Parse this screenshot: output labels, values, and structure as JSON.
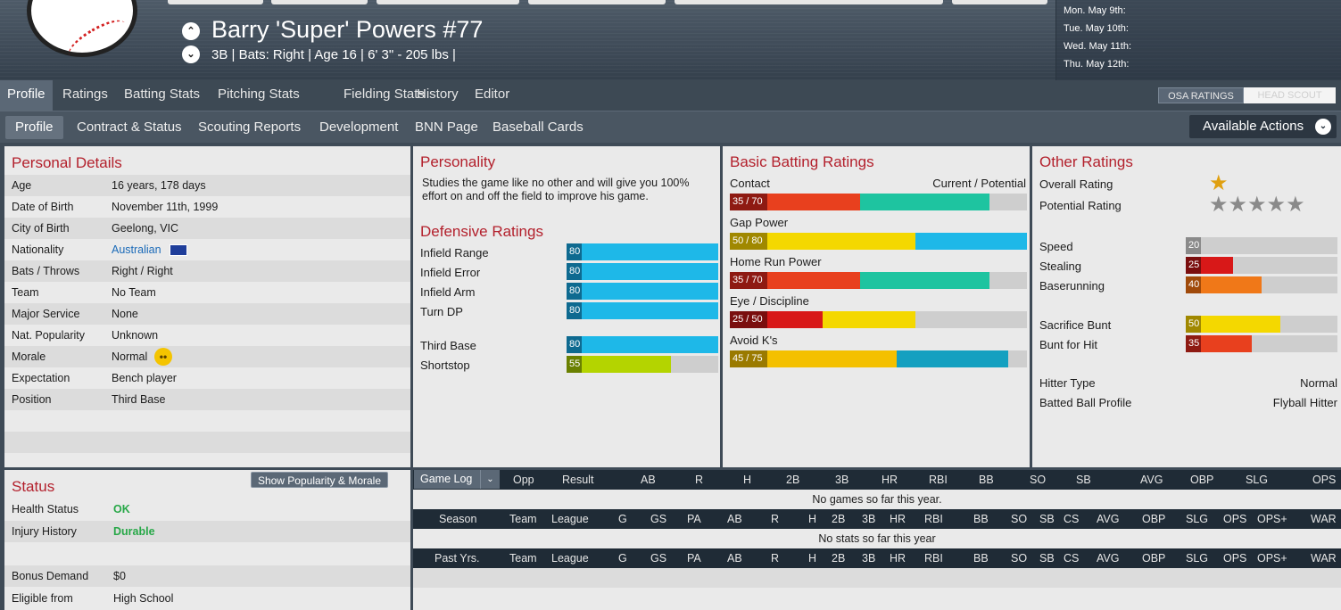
{
  "header": {
    "player_name": "Barry 'Super' Powers  #77",
    "player_info": "3B | Bats: Right  |  Age 16  |  6' 3\" - 205 lbs  |",
    "schedule": [
      "Mon. May 9th:",
      "Tue. May 10th:",
      "Wed. May 11th:",
      "Thu. May 12th:"
    ]
  },
  "tabs": [
    "Profile",
    "Ratings",
    "Batting Stats",
    "Pitching Stats",
    "Fielding Stats",
    "History",
    "Editor"
  ],
  "rating_source": {
    "osa": "OSA RATINGS",
    "head_scout": "HEAD SCOUT"
  },
  "subtabs": [
    "Profile",
    "Contract & Status",
    "Scouting Reports",
    "Development",
    "BNN Page",
    "Baseball Cards"
  ],
  "actions_label": "Available Actions",
  "personal_details": {
    "title": "Personal Details",
    "rows": [
      {
        "label": "Age",
        "value": "16 years, 178 days"
      },
      {
        "label": "Date of Birth",
        "value": "November 11th, 1999"
      },
      {
        "label": "City of Birth",
        "value": "Geelong, VIC"
      },
      {
        "label": "Nationality",
        "value": "Australian"
      },
      {
        "label": "Bats / Throws",
        "value": "Right / Right"
      },
      {
        "label": "Team",
        "value": "No Team"
      },
      {
        "label": "Major Service",
        "value": "None"
      },
      {
        "label": "Nat. Popularity",
        "value": "Unknown"
      },
      {
        "label": "Morale",
        "value": "Normal"
      },
      {
        "label": "Expectation",
        "value": "Bench player"
      },
      {
        "label": "Position",
        "value": "Third Base"
      }
    ]
  },
  "status": {
    "title": "Status",
    "show_button": "Show Popularity & Morale",
    "rows": [
      {
        "label": "Health Status",
        "value": "OK"
      },
      {
        "label": "Injury History",
        "value": "Durable"
      },
      {
        "label": "Bonus Demand",
        "value": "$0"
      },
      {
        "label": "Eligible from",
        "value": "High School"
      }
    ]
  },
  "personality": {
    "title": "Personality",
    "text": "Studies the game like no other and will give you 100% effort on and off the field to improve his game."
  },
  "defensive": {
    "title": "Defensive Ratings",
    "rows": [
      {
        "label": "Infield Range",
        "value": 80,
        "color": "#1eb8e8"
      },
      {
        "label": "Infield Error",
        "value": 80,
        "color": "#1eb8e8"
      },
      {
        "label": "Infield Arm",
        "value": 80,
        "color": "#1eb8e8"
      },
      {
        "label": "Turn DP",
        "value": 80,
        "color": "#1eb8e8"
      },
      {
        "label": "Third Base",
        "value": 80,
        "color": "#1eb8e8"
      },
      {
        "label": "Shortstop",
        "value": 55,
        "color": "#b4d400"
      }
    ]
  },
  "batting": {
    "title": "Basic Batting Ratings",
    "legend": "Current / Potential",
    "rows": [
      {
        "label": "Contact",
        "current": 35,
        "potential": 70,
        "cur_color": "#e8401e",
        "pot_color": "#1ec4a0",
        "num_color": "#8e1a12"
      },
      {
        "label": "Gap Power",
        "current": 50,
        "potential": 80,
        "cur_color": "#f4d800",
        "pot_color": "#1eb8e8",
        "num_color": "#a08800"
      },
      {
        "label": "Home Run Power",
        "current": 35,
        "potential": 70,
        "cur_color": "#e8401e",
        "pot_color": "#1ec4a0",
        "num_color": "#8e1a12"
      },
      {
        "label": "Eye / Discipline",
        "current": 25,
        "potential": 50,
        "cur_color": "#d81818",
        "pot_color": "#f4d800",
        "num_color": "#7a0e0e"
      },
      {
        "label": "Avoid K's",
        "current": 45,
        "potential": 75,
        "cur_color": "#f4c000",
        "pot_color": "#14a0c0",
        "num_color": "#9a7a00"
      }
    ]
  },
  "other": {
    "title": "Other Ratings",
    "overall_label": "Overall Rating",
    "overall_stars": 1,
    "potential_label": "Potential Rating",
    "potential_stars": 5,
    "rows": [
      {
        "label": "Speed",
        "value": 20,
        "color": "#cecece",
        "num_color": "#8a8a8a"
      },
      {
        "label": "Stealing",
        "value": 25,
        "color": "#d81818",
        "num_color": "#7a0e0e"
      },
      {
        "label": "Baserunning",
        "value": 40,
        "color": "#f07818",
        "num_color": "#a04a0a"
      },
      {
        "label": "Sacrifice Bunt",
        "value": 50,
        "color": "#f4d800",
        "num_color": "#a08800"
      },
      {
        "label": "Bunt for Hit",
        "value": 35,
        "color": "#e8401e",
        "num_color": "#8e1a12"
      }
    ],
    "hitter_type_label": "Hitter Type",
    "hitter_type": "Normal",
    "batted_ball_label": "Batted Ball Profile",
    "batted_ball": "Flyball Hitter"
  },
  "game_log": {
    "dropdown": "Game Log",
    "headers": [
      "Opp",
      "Result",
      "AB",
      "R",
      "H",
      "2B",
      "3B",
      "HR",
      "RBI",
      "BB",
      "SO",
      "SB",
      "AVG",
      "OBP",
      "SLG",
      "OPS"
    ],
    "empty": "No games so far this year."
  },
  "season_stats": {
    "headers": [
      "Season",
      "Team",
      "League",
      "G",
      "GS",
      "PA",
      "AB",
      "R",
      "H",
      "2B",
      "3B",
      "HR",
      "RBI",
      "BB",
      "SO",
      "SB",
      "CS",
      "AVG",
      "OBP",
      "SLG",
      "OPS",
      "OPS+",
      "WAR"
    ],
    "empty": "No stats so far this year"
  },
  "past_stats": {
    "headers": [
      "Past Yrs.",
      "Team",
      "League",
      "G",
      "GS",
      "PA",
      "AB",
      "R",
      "H",
      "2B",
      "3B",
      "HR",
      "RBI",
      "BB",
      "SO",
      "SB",
      "CS",
      "AVG",
      "OBP",
      "SLG",
      "OPS",
      "OPS+",
      "WAR"
    ]
  }
}
